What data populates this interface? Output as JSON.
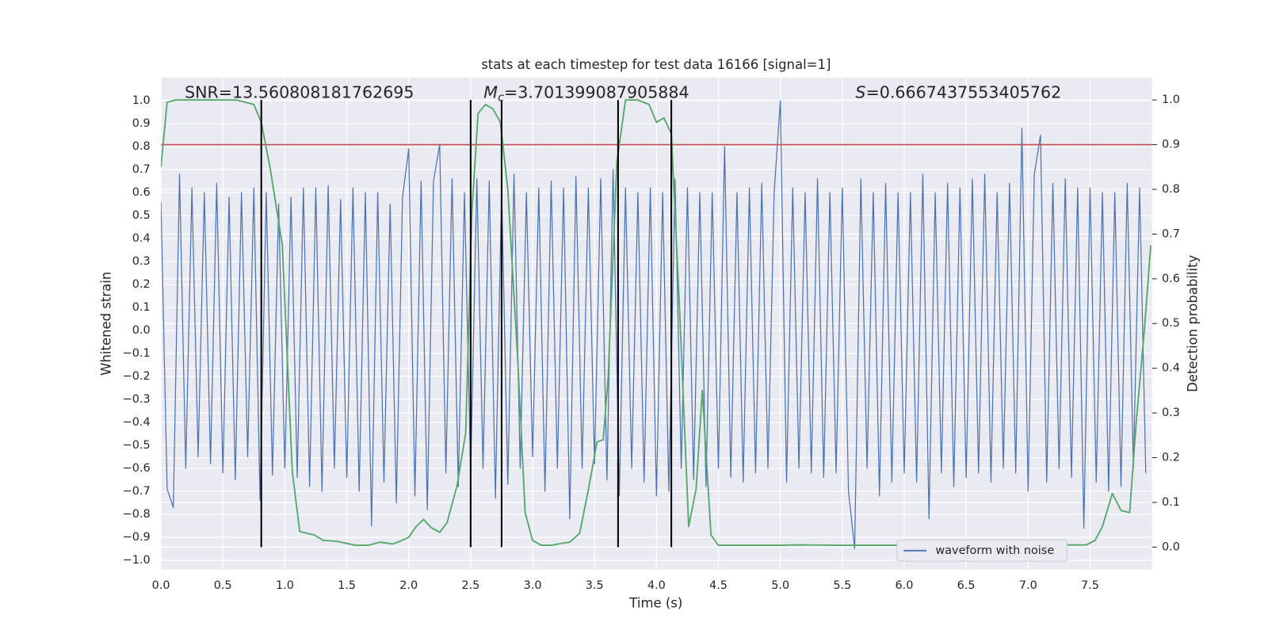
{
  "chart_data": {
    "type": "line",
    "title": "stats at each timestep for test data 16166 [signal=1]",
    "xlabel": "Time (s)",
    "ylabel": "Whitened strain",
    "y2label": "Detection probability",
    "xlim": [
      0,
      8
    ],
    "ylim": [
      -1.04,
      1.1
    ],
    "y2lim": [
      -0.05,
      1.05
    ],
    "grid": true,
    "legend": "lower right",
    "xticks": [
      {
        "value": 0,
        "label": "0.0"
      },
      {
        "value": 0.5,
        "label": "0.5"
      },
      {
        "value": 1,
        "label": "1.0"
      },
      {
        "value": 1.5,
        "label": "1.5"
      },
      {
        "value": 2,
        "label": "2.0"
      },
      {
        "value": 2.5,
        "label": "2.5"
      },
      {
        "value": 3,
        "label": "3.0"
      },
      {
        "value": 3.5,
        "label": "3.5"
      },
      {
        "value": 4,
        "label": "4.0"
      },
      {
        "value": 4.5,
        "label": "4.5"
      },
      {
        "value": 5,
        "label": "5.0"
      },
      {
        "value": 5.5,
        "label": "5.5"
      },
      {
        "value": 6,
        "label": "6.0"
      },
      {
        "value": 6.5,
        "label": "6.5"
      },
      {
        "value": 7,
        "label": "7.0"
      },
      {
        "value": 7.5,
        "label": "7.5"
      }
    ],
    "yticks": [
      {
        "value": -1,
        "label": "−1.0"
      },
      {
        "value": -0.9,
        "label": "−0.9"
      },
      {
        "value": -0.8,
        "label": "−0.8"
      },
      {
        "value": -0.7,
        "label": "−0.7"
      },
      {
        "value": -0.6,
        "label": "−0.6"
      },
      {
        "value": -0.5,
        "label": "−0.5"
      },
      {
        "value": -0.4,
        "label": "−0.4"
      },
      {
        "value": -0.3,
        "label": "−0.3"
      },
      {
        "value": -0.2,
        "label": "−0.2"
      },
      {
        "value": -0.1,
        "label": "−0.1"
      },
      {
        "value": 0,
        "label": "0.0"
      },
      {
        "value": 0.1,
        "label": "0.1"
      },
      {
        "value": 0.2,
        "label": "0.2"
      },
      {
        "value": 0.3,
        "label": "0.3"
      },
      {
        "value": 0.4,
        "label": "0.4"
      },
      {
        "value": 0.5,
        "label": "0.5"
      },
      {
        "value": 0.6,
        "label": "0.6"
      },
      {
        "value": 0.7,
        "label": "0.7"
      },
      {
        "value": 0.8,
        "label": "0.8"
      },
      {
        "value": 0.9,
        "label": "0.9"
      },
      {
        "value": 1,
        "label": "1.0"
      }
    ],
    "y2ticks": [
      {
        "value": 0,
        "label": "0.0"
      },
      {
        "value": 0.1,
        "label": "0.1"
      },
      {
        "value": 0.2,
        "label": "0.2"
      },
      {
        "value": 0.3,
        "label": "0.3"
      },
      {
        "value": 0.4,
        "label": "0.4"
      },
      {
        "value": 0.5,
        "label": "0.5"
      },
      {
        "value": 0.6,
        "label": "0.6"
      },
      {
        "value": 0.7,
        "label": "0.7"
      },
      {
        "value": 0.8,
        "label": "0.8"
      },
      {
        "value": 0.9,
        "label": "0.9"
      },
      {
        "value": 1,
        "label": "1.0"
      }
    ],
    "annotations": [
      {
        "text": "SNR=13.560808181762695"
      },
      {
        "symbol": "M",
        "subscript": "c",
        "text": "=3.701399087905884"
      },
      {
        "symbol": "S",
        "text": "=0.6667437553405762"
      }
    ],
    "series": [
      {
        "name": "waveform with noise",
        "color": "#4c72b0",
        "x": [
          0,
          0.05,
          0.1,
          0.15,
          0.2,
          0.25,
          0.3,
          0.35,
          0.4,
          0.45,
          0.5,
          0.55,
          0.6,
          0.65,
          0.7,
          0.75,
          0.8,
          0.85,
          0.9,
          0.95,
          1,
          1.05,
          1.1,
          1.15,
          1.2,
          1.25,
          1.3,
          1.35,
          1.4,
          1.45,
          1.5,
          1.55,
          1.6,
          1.65,
          1.7,
          1.75,
          1.8,
          1.85,
          1.9,
          1.95,
          2,
          2.05,
          2.1,
          2.15,
          2.2,
          2.25,
          2.3,
          2.35,
          2.4,
          2.45,
          2.5,
          2.55,
          2.6,
          2.65,
          2.7,
          2.75,
          2.8,
          2.85,
          2.9,
          2.95,
          3,
          3.05,
          3.1,
          3.15,
          3.2,
          3.25,
          3.3,
          3.35,
          3.4,
          3.45,
          3.5,
          3.55,
          3.6,
          3.65,
          3.7,
          3.75,
          3.8,
          3.85,
          3.9,
          3.95,
          4,
          4.05,
          4.1,
          4.15,
          4.2,
          4.25,
          4.3,
          4.35,
          4.4,
          4.45,
          4.5,
          4.55,
          4.6,
          4.65,
          4.7,
          4.75,
          4.8,
          4.85,
          4.9,
          4.95,
          5,
          5.05,
          5.1,
          5.15,
          5.2,
          5.25,
          5.3,
          5.35,
          5.4,
          5.45,
          5.5,
          5.55,
          5.6,
          5.65,
          5.7,
          5.75,
          5.8,
          5.85,
          5.9,
          5.95,
          6,
          6.05,
          6.1,
          6.15,
          6.2,
          6.25,
          6.3,
          6.35,
          6.4,
          6.45,
          6.5,
          6.55,
          6.6,
          6.65,
          6.7,
          6.75,
          6.8,
          6.85,
          6.9,
          6.95,
          7,
          7.05,
          7.1,
          7.15,
          7.2,
          7.25,
          7.3,
          7.35,
          7.4,
          7.45,
          7.5,
          7.55,
          7.6,
          7.65,
          7.7,
          7.75,
          7.8,
          7.85,
          7.9,
          7.95
        ],
        "values": [
          0.56,
          -0.69,
          -0.77,
          0.68,
          -0.6,
          0.62,
          -0.55,
          0.6,
          -0.58,
          0.64,
          -0.62,
          0.58,
          -0.65,
          0.6,
          -0.55,
          0.62,
          -0.74,
          0.6,
          -0.63,
          0.55,
          -0.6,
          0.58,
          -0.64,
          0.62,
          -0.68,
          0.62,
          -0.7,
          0.63,
          -0.6,
          0.57,
          -0.64,
          0.62,
          -0.7,
          0.6,
          -0.85,
          0.6,
          -0.66,
          0.55,
          -0.75,
          0.58,
          0.79,
          -0.72,
          0.65,
          -0.78,
          0.65,
          0.81,
          -0.62,
          0.66,
          -0.68,
          0.6,
          -0.62,
          0.66,
          -0.6,
          0.65,
          -0.73,
          0.62,
          -0.67,
          0.68,
          -0.6,
          0.6,
          -0.55,
          0.62,
          -0.7,
          0.65,
          -0.6,
          0.62,
          -0.82,
          0.67,
          -0.6,
          0.62,
          -0.58,
          0.66,
          -0.65,
          0.7,
          -0.72,
          0.62,
          -0.6,
          0.6,
          -0.66,
          0.62,
          -0.72,
          0.6,
          -0.7,
          0.66,
          -0.6,
          0.62,
          -0.65,
          0.6,
          -0.68,
          0.6,
          -0.6,
          0.8,
          -0.64,
          0.6,
          -0.66,
          0.62,
          -0.62,
          0.64,
          -0.6,
          0.6,
          1.0,
          -0.66,
          0.62,
          -0.6,
          0.6,
          -0.62,
          0.66,
          -0.64,
          0.6,
          -0.62,
          0.62,
          -0.7,
          -0.95,
          0.66,
          -0.6,
          0.6,
          -0.72,
          0.64,
          -0.66,
          0.6,
          -0.62,
          0.6,
          -0.66,
          0.68,
          -0.82,
          0.6,
          -0.62,
          0.64,
          -0.68,
          0.62,
          -0.64,
          0.66,
          -0.62,
          0.68,
          -0.66,
          0.6,
          -0.6,
          0.64,
          -0.62,
          0.88,
          -0.7,
          0.68,
          0.85,
          -0.66,
          0.64,
          -0.6,
          0.66,
          -0.64,
          0.62,
          -0.86,
          0.62,
          -0.66,
          0.6,
          -0.7,
          0.6,
          -0.68,
          0.64,
          -0.6,
          0.62,
          -0.62
        ]
      },
      {
        "color": "#55a868",
        "axis": "y2",
        "x": [
          0,
          0.05,
          0.12,
          0.3,
          0.61,
          0.75,
          0.81,
          0.88,
          0.98,
          1.06,
          1.12,
          1.24,
          1.31,
          1.42,
          1.57,
          1.67,
          1.77,
          1.87,
          1.93,
          2.0,
          2.06,
          2.12,
          2.18,
          2.25,
          2.31,
          2.39,
          2.46,
          2.51,
          2.56,
          2.62,
          2.68,
          2.74,
          2.8,
          2.88,
          2.94,
          3.0,
          3.07,
          3.15,
          3.25,
          3.3,
          3.38,
          3.45,
          3.52,
          3.57,
          3.61,
          3.68,
          3.75,
          3.85,
          3.94,
          4.0,
          4.06,
          4.12,
          4.19,
          4.26,
          4.32,
          4.37,
          4.44,
          4.5,
          5.0,
          5.13,
          5.5,
          5.96,
          6.5,
          6.78,
          7.0,
          7.47,
          7.54,
          7.6,
          7.68,
          7.75,
          7.82,
          7.87,
          7.94,
          7.99
        ],
        "values": [
          0.85,
          0.995,
          1.0,
          1.0,
          1.0,
          0.99,
          0.95,
          0.85,
          0.675,
          0.17,
          0.035,
          0.027,
          0.015,
          0.013,
          0.004,
          0.004,
          0.011,
          0.007,
          0.013,
          0.022,
          0.046,
          0.062,
          0.044,
          0.033,
          0.055,
          0.137,
          0.255,
          0.75,
          0.97,
          0.99,
          0.98,
          0.95,
          0.8,
          0.42,
          0.077,
          0.015,
          0.004,
          0.004,
          0.009,
          0.011,
          0.031,
          0.128,
          0.235,
          0.24,
          0.38,
          0.86,
          1.0,
          1.0,
          0.99,
          0.95,
          0.96,
          0.925,
          0.51,
          0.046,
          0.13,
          0.35,
          0.027,
          0.004,
          0.004,
          0.005,
          0.004,
          0.004,
          0.003,
          0.005,
          0.004,
          0.005,
          0.015,
          0.046,
          0.12,
          0.082,
          0.077,
          0.27,
          0.49,
          0.675
        ]
      }
    ],
    "hlines": [
      {
        "value": 0.9,
        "axis": "y2",
        "color": "#c44e52"
      }
    ],
    "vlines": {
      "x": [
        0.81,
        2.5,
        2.75,
        3.69,
        4.12
      ],
      "ymin": 0,
      "ymax": 1,
      "axis": "y2",
      "color": "#000000"
    }
  }
}
